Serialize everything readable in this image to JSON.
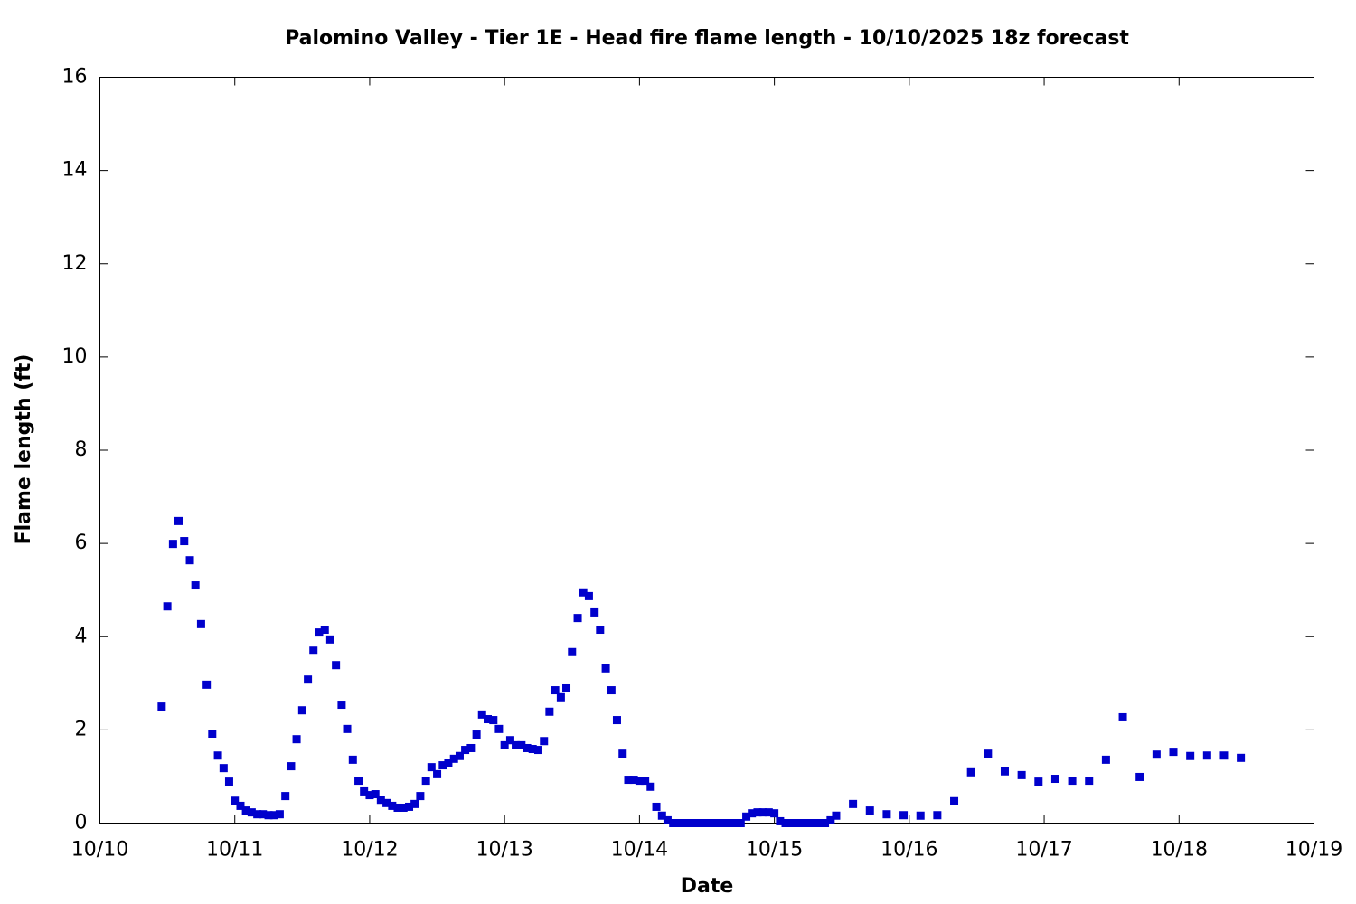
{
  "chart_data": {
    "type": "scatter",
    "title": "Palomino Valley - Tier 1E - Head fire flame length - 10/10/2025 18z forecast",
    "xlabel": "Date",
    "ylabel": "Flame length (ft)",
    "color": "#0000cc",
    "x": [
      0.458,
      0.5,
      0.542,
      0.583,
      0.625,
      0.667,
      0.708,
      0.75,
      0.792,
      0.833,
      0.875,
      0.917,
      0.958,
      1,
      1.042,
      1.083,
      1.125,
      1.167,
      1.208,
      1.25,
      1.292,
      1.333,
      1.375,
      1.417,
      1.458,
      1.5,
      1.542,
      1.583,
      1.625,
      1.667,
      1.708,
      1.75,
      1.792,
      1.833,
      1.875,
      1.917,
      1.958,
      2,
      2.042,
      2.083,
      2.125,
      2.167,
      2.208,
      2.25,
      2.292,
      2.333,
      2.375,
      2.417,
      2.458,
      2.5,
      2.542,
      2.583,
      2.625,
      2.667,
      2.708,
      2.75,
      2.792,
      2.833,
      2.875,
      2.917,
      2.958,
      3,
      3.042,
      3.083,
      3.125,
      3.167,
      3.208,
      3.25,
      3.292,
      3.333,
      3.375,
      3.417,
      3.458,
      3.5,
      3.542,
      3.583,
      3.625,
      3.667,
      3.708,
      3.75,
      3.792,
      3.833,
      3.875,
      3.917,
      3.958,
      4,
      4.042,
      4.083,
      4.125,
      4.167,
      4.208,
      4.25,
      4.292,
      4.333,
      4.375,
      4.417,
      4.458,
      4.5,
      4.542,
      4.583,
      4.625,
      4.667,
      4.708,
      4.75,
      4.792,
      4.833,
      4.875,
      4.917,
      4.958,
      5,
      5.042,
      5.083,
      5.125,
      5.167,
      5.208,
      5.25,
      5.292,
      5.333,
      5.375,
      5.417,
      5.458,
      5.583,
      5.708,
      5.833,
      5.958,
      6.083,
      6.208,
      6.333,
      6.458,
      6.583,
      6.708,
      6.833,
      6.958,
      7.083,
      7.208,
      7.333,
      7.458,
      7.583,
      7.708,
      7.833,
      7.958,
      8.083,
      8.208,
      8.333,
      8.458
    ],
    "values": [
      2.5,
      4.65,
      5.99,
      6.48,
      6.05,
      5.64,
      5.1,
      4.27,
      2.97,
      1.92,
      1.45,
      1.18,
      0.89,
      0.48,
      0.37,
      0.27,
      0.23,
      0.19,
      0.19,
      0.17,
      0.17,
      0.19,
      0.58,
      1.22,
      1.8,
      2.42,
      3.08,
      3.7,
      4.09,
      4.15,
      3.94,
      3.39,
      2.54,
      2.02,
      1.36,
      0.91,
      0.68,
      0.6,
      0.62,
      0.5,
      0.43,
      0.37,
      0.33,
      0.33,
      0.35,
      0.41,
      0.58,
      0.91,
      1.2,
      1.05,
      1.24,
      1.28,
      1.38,
      1.44,
      1.57,
      1.61,
      1.9,
      2.33,
      2.23,
      2.21,
      2.02,
      1.67,
      1.78,
      1.67,
      1.67,
      1.61,
      1.59,
      1.57,
      1.76,
      2.39,
      2.85,
      2.7,
      2.89,
      3.67,
      4.4,
      4.95,
      4.87,
      4.52,
      4.15,
      3.32,
      2.85,
      2.21,
      1.49,
      0.93,
      0.93,
      0.91,
      0.91,
      0.78,
      0.35,
      0.16,
      0.06,
      0,
      0,
      0,
      0,
      0,
      0,
      0,
      0,
      0,
      0,
      0,
      0,
      0,
      0.14,
      0.21,
      0.23,
      0.23,
      0.23,
      0.21,
      0.04,
      0,
      0,
      0,
      0,
      0,
      0,
      0,
      0,
      0.06,
      0.16,
      0.41,
      0.27,
      0.19,
      0.17,
      0.16,
      0.17,
      0.47,
      1.09,
      1.49,
      1.11,
      1.03,
      0.89,
      0.95,
      0.91,
      0.91,
      1.36,
      2.27,
      0.99,
      1.47,
      1.53,
      1.44,
      1.45,
      1.45,
      1.4
    ],
    "xlim": [
      0,
      9
    ],
    "xticks": [
      {
        "value": 0,
        "label": "10/10"
      },
      {
        "value": 1,
        "label": "10/11"
      },
      {
        "value": 2,
        "label": "10/12"
      },
      {
        "value": 3,
        "label": "10/13"
      },
      {
        "value": 4,
        "label": "10/14"
      },
      {
        "value": 5,
        "label": "10/15"
      },
      {
        "value": 6,
        "label": "10/16"
      },
      {
        "value": 7,
        "label": "10/17"
      },
      {
        "value": 8,
        "label": "10/18"
      },
      {
        "value": 9,
        "label": "10/19"
      }
    ],
    "ylim": [
      0,
      16
    ],
    "yticks": [
      0,
      2,
      4,
      6,
      8,
      10,
      12,
      14,
      16
    ]
  }
}
